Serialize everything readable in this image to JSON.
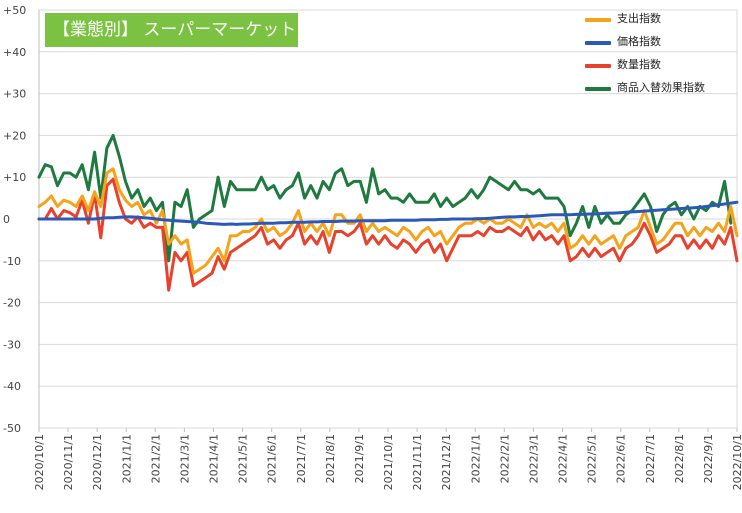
{
  "chart_data": {
    "type": "line",
    "title": "【業態別】 スーパーマーケット",
    "ylim": [
      -50,
      50
    ],
    "y_ticks": [
      "+50",
      "+40",
      "+30",
      "+20",
      "+10",
      "0",
      "-10",
      "-20",
      "-30",
      "-40",
      "-50"
    ],
    "y_tick_values": [
      50,
      40,
      30,
      20,
      10,
      0,
      -10,
      -20,
      -30,
      -40,
      -50
    ],
    "x_ticks": [
      "2020/10/1",
      "2020/11/1",
      "2020/12/1",
      "2021/1/1",
      "2021/2/1",
      "2021/3/1",
      "2021/4/1",
      "2021/5/1",
      "2021/6/1",
      "2021/7/1",
      "2021/8/1",
      "2021/9/1",
      "2021/10/1",
      "2021/11/1",
      "2021/12/1",
      "2022/1/1",
      "2022/2/1",
      "2022/3/1",
      "2022/4/1",
      "2022/5/1",
      "2022/6/1",
      "2022/7/1",
      "2022/8/1",
      "2022/9/1",
      "2022/10/1"
    ],
    "legend_position": "top-right",
    "series": [
      {
        "name": "支出指数",
        "color": "#f5a31a",
        "values": [
          3,
          4,
          5.5,
          3,
          4.5,
          4,
          3,
          5.5,
          2,
          6.5,
          3,
          11,
          12,
          7,
          4.5,
          3,
          4,
          1,
          2,
          -1,
          2,
          -6,
          -4,
          -6,
          -5,
          -13,
          -12,
          -11,
          -9,
          -7,
          -10,
          -4,
          -4,
          -3,
          -3,
          -2,
          0,
          -3,
          -2,
          -4,
          -3,
          -1,
          2,
          -3,
          -1,
          -3,
          -1,
          -4,
          1,
          1,
          -1,
          -1,
          1,
          -3,
          -1,
          -3,
          -2,
          -3,
          -4,
          -2,
          -3,
          -5,
          -3,
          -2,
          -4,
          -3,
          -6,
          -4,
          -2,
          -1,
          -1,
          0,
          -1,
          0,
          -1,
          -1,
          0,
          -1,
          -2,
          1,
          -2,
          -1,
          -2,
          -1,
          -3,
          -1,
          -7,
          -6,
          -4,
          -6,
          -4,
          -6,
          -5,
          -4,
          -7,
          -4,
          -3,
          -2,
          2,
          -2,
          -6,
          -5,
          -3,
          -1,
          -1,
          -4,
          -2,
          -4,
          -2,
          -3,
          -1,
          -3,
          3,
          -4
        ]
      },
      {
        "name": "価格指数",
        "color": "#2b59b8",
        "values": [
          0,
          0,
          0,
          0,
          0,
          0,
          0,
          0,
          0,
          0,
          0.2,
          0.3,
          0.3,
          0.4,
          0.5,
          0.5,
          0.4,
          0.3,
          0.2,
          0,
          -0.2,
          -0.3,
          -0.4,
          -0.5,
          -0.6,
          -0.7,
          -0.8,
          -1,
          -1.1,
          -1.2,
          -1.3,
          -1.2,
          -1.3,
          -1.2,
          -1.2,
          -1.1,
          -1,
          -1,
          -1,
          -0.9,
          -0.9,
          -0.8,
          -0.8,
          -0.8,
          -0.7,
          -0.7,
          -0.6,
          -0.6,
          -0.6,
          -0.5,
          -0.5,
          -0.5,
          -0.4,
          -0.4,
          -0.4,
          -0.4,
          -0.4,
          -0.3,
          -0.3,
          -0.3,
          -0.3,
          -0.3,
          -0.2,
          -0.2,
          -0.2,
          -0.1,
          -0.1,
          0,
          0,
          0,
          0,
          0.1,
          0.1,
          0.2,
          0.3,
          0.4,
          0.5,
          0.5,
          0.6,
          0.6,
          0.7,
          0.8,
          0.9,
          1,
          1,
          1,
          1,
          1.1,
          1.1,
          1.2,
          1.2,
          1.3,
          1.4,
          1.4,
          1.5,
          1.6,
          1.7,
          1.8,
          1.9,
          2,
          2.1,
          2.2,
          2.3,
          2.4,
          2.5,
          2.6,
          2.7,
          2.8,
          3,
          3.2,
          3.4,
          3.6,
          3.8,
          4
        ]
      },
      {
        "name": "数量指数",
        "color": "#e8412c",
        "values": [
          0,
          0,
          2.5,
          0,
          2,
          1.5,
          0.5,
          4.5,
          -1,
          6,
          -4.5,
          8,
          9.5,
          4,
          0,
          -1,
          0.5,
          -2,
          -1,
          -2,
          -2,
          -17,
          -8,
          -10,
          -8,
          -16,
          -15,
          -14,
          -13,
          -9,
          -12,
          -8,
          -7,
          -6,
          -5,
          -4,
          -2,
          -6,
          -5,
          -7,
          -5,
          -4,
          -1,
          -6,
          -4,
          -6,
          -3,
          -8,
          -3,
          -3,
          -4,
          -3,
          -1,
          -6,
          -4,
          -6,
          -4,
          -6,
          -7,
          -5,
          -6,
          -8,
          -6,
          -5,
          -8,
          -6,
          -10,
          -7,
          -4,
          -4,
          -4,
          -3,
          -4,
          -2,
          -3,
          -3,
          -2,
          -3,
          -4,
          -2,
          -5,
          -3,
          -5,
          -4,
          -6,
          -4,
          -10,
          -9,
          -7,
          -9,
          -7,
          -9,
          -8,
          -7,
          -10,
          -7,
          -6,
          -4,
          -1,
          -4,
          -8,
          -7,
          -6,
          -4,
          -4,
          -7,
          -5,
          -7,
          -5,
          -7,
          -4,
          -6,
          -2,
          -10
        ]
      },
      {
        "name": "商品入替効果指数",
        "color": "#1e7a3e",
        "values": [
          10,
          13,
          12.5,
          8,
          11,
          11,
          10,
          13,
          7,
          16,
          5,
          17,
          20,
          15,
          9,
          5,
          7,
          3,
          5,
          2,
          4,
          -10,
          4,
          3,
          7,
          -2,
          0,
          1,
          2,
          10,
          3,
          9,
          7,
          7,
          7,
          7,
          10,
          7,
          8,
          5,
          7,
          8,
          11,
          5,
          8,
          5,
          9,
          7,
          11,
          12,
          8,
          9,
          9,
          4,
          12,
          6,
          7,
          5,
          5,
          4,
          6,
          4,
          4,
          4,
          6,
          3,
          5,
          3,
          4,
          5,
          7,
          5,
          7,
          10,
          9,
          8,
          7,
          9,
          7,
          7,
          6,
          7,
          5,
          5,
          5,
          3,
          -4,
          -1,
          3,
          -2,
          3,
          -1,
          1,
          -1,
          -1,
          1,
          2,
          4,
          6,
          3,
          -3,
          1,
          3,
          4,
          1,
          3,
          0,
          3,
          2,
          4,
          3,
          9,
          -1
        ]
      }
    ]
  }
}
